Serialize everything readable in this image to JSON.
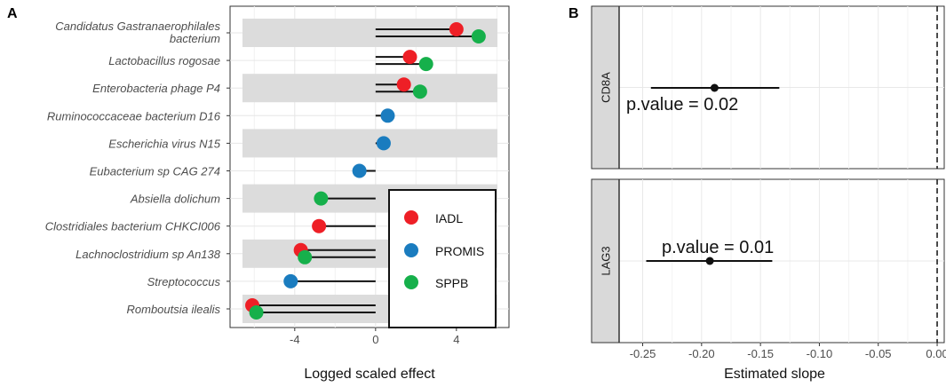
{
  "chart_data": [
    {
      "panel": "A",
      "type": "lollipop",
      "xlabel": "Logged scaled effect",
      "xlim": [
        -7.2,
        6.6
      ],
      "xticks": [
        -4,
        0,
        4
      ],
      "xtick_labels": [
        "-4",
        "0",
        "4"
      ],
      "categories": [
        [
          "Candidatus Gastranaerophilales",
          "bacterium"
        ],
        [
          "Lactobacillus rogosae"
        ],
        [
          "Enterobacteria phage P4"
        ],
        [
          "Ruminococcaceae bacterium D16"
        ],
        [
          "Escherichia virus N15"
        ],
        [
          "Eubacterium sp CAG 274"
        ],
        [
          "Absiella dolichum"
        ],
        [
          "Clostridiales bacterium CHKCI006"
        ],
        [
          "Lachnoclostridium sp An138"
        ],
        [
          "Streptococcus"
        ],
        [
          "Romboutsia ilealis"
        ]
      ],
      "bands": [
        0,
        2,
        4,
        6,
        8,
        10
      ],
      "colors": {
        "IADL": "#ee1f26",
        "PROMIS": "#1a7cbf",
        "SPPB": "#16b04b"
      },
      "legend": [
        {
          "name": "IADL",
          "color": "#ee1f26"
        },
        {
          "name": "PROMIS",
          "color": "#1a7cbf"
        },
        {
          "name": "SPPB",
          "color": "#16b04b"
        }
      ],
      "series": [
        {
          "cat": 0,
          "name": "IADL",
          "value": 4.0
        },
        {
          "cat": 0,
          "name": "SPPB",
          "value": 5.1
        },
        {
          "cat": 1,
          "name": "IADL",
          "value": 1.7
        },
        {
          "cat": 1,
          "name": "SPPB",
          "value": 2.5
        },
        {
          "cat": 2,
          "name": "IADL",
          "value": 1.4
        },
        {
          "cat": 2,
          "name": "SPPB",
          "value": 2.2
        },
        {
          "cat": 3,
          "name": "PROMIS",
          "value": 0.6
        },
        {
          "cat": 4,
          "name": "PROMIS",
          "value": 0.4
        },
        {
          "cat": 5,
          "name": "PROMIS",
          "value": -0.8
        },
        {
          "cat": 6,
          "name": "SPPB",
          "value": -2.7
        },
        {
          "cat": 7,
          "name": "IADL",
          "value": -2.8
        },
        {
          "cat": 8,
          "name": "IADL",
          "value": -3.7
        },
        {
          "cat": 8,
          "name": "SPPB",
          "value": -3.5
        },
        {
          "cat": 9,
          "name": "PROMIS",
          "value": -4.2
        },
        {
          "cat": 10,
          "name": "IADL",
          "value": -6.1
        },
        {
          "cat": 10,
          "name": "SPPB",
          "value": -5.9
        }
      ]
    },
    {
      "panel": "B",
      "type": "forest",
      "xlabel": "Estimated slope",
      "xlim": [
        -0.27,
        0.006
      ],
      "xticks": [
        -0.25,
        -0.2,
        -0.15,
        -0.1,
        -0.05,
        0.0
      ],
      "xtick_labels": [
        "-0.25",
        "-0.20",
        "-0.15",
        "-0.10",
        "-0.05",
        "0.00"
      ],
      "reference_line": 0.0,
      "facets": [
        {
          "label": "CD8A",
          "estimate": -0.189,
          "lower": -0.243,
          "upper": -0.134,
          "annotation": "p.value = 0.02"
        },
        {
          "label": "LAG3",
          "estimate": -0.193,
          "lower": -0.247,
          "upper": -0.14,
          "annotation": "p.value = 0.01"
        }
      ]
    }
  ]
}
